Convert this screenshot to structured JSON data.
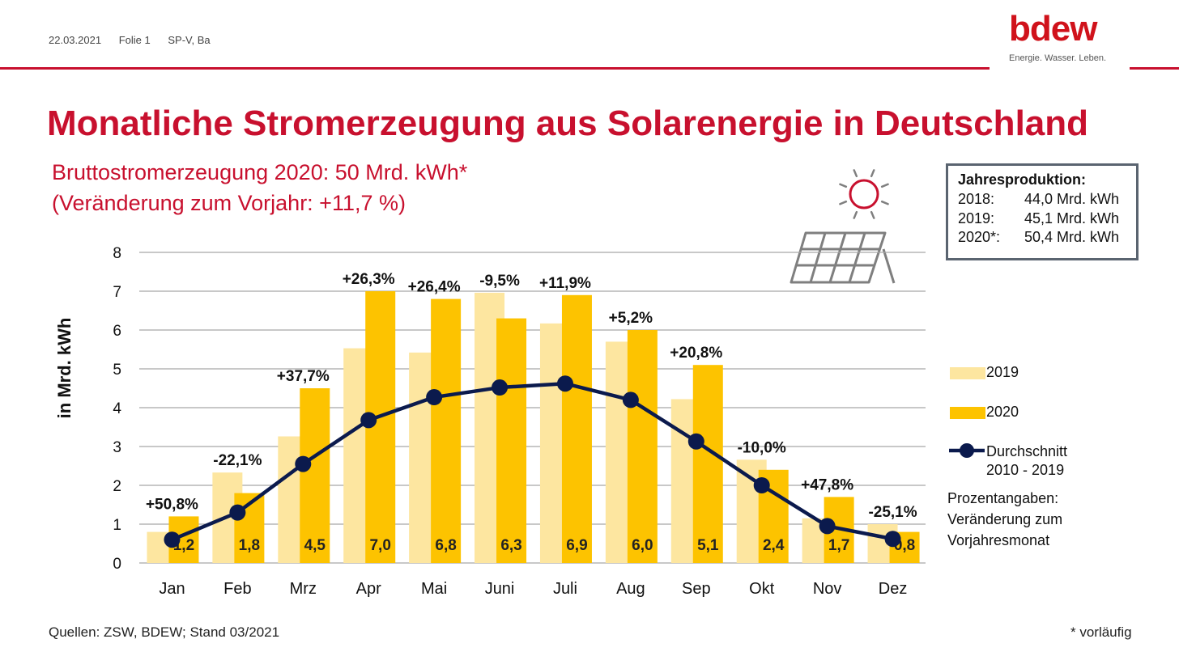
{
  "meta": {
    "date": "22.03.2021",
    "slide": "Folie 1",
    "author": "SP-V, Ba"
  },
  "logo": {
    "word": "bdew",
    "tagline": "Energie. Wasser. Leben."
  },
  "header": {
    "title": "Monatliche Stromerzeugung aus Solarenergie in Deutschland",
    "subtitle_line1": "Bruttostromerzeugung 2020: 50 Mrd. kWh*",
    "subtitle_line2": "(Veränderung zum Vorjahr: +11,7 %)"
  },
  "infobox": {
    "title": "Jahresproduktion:",
    "rows": [
      {
        "year": "2018:",
        "value": "44,0 Mrd. kWh"
      },
      {
        "year": "2019:",
        "value": "45,1 Mrd. kWh"
      },
      {
        "year": "2020*:",
        "value": "50,4 Mrd. kWh"
      }
    ]
  },
  "legend": {
    "s2019": "2019",
    "s2020": "2020",
    "avg_line1": "Durchschnitt",
    "avg_line2": "2010 - 2019",
    "note_line1": "Prozentangaben:",
    "note_line2": "Veränderung zum",
    "note_line3": "Vorjahresmonat"
  },
  "footer": {
    "sources": "Quellen: ZSW, BDEW; Stand 03/2021",
    "note": "* vorläufig"
  },
  "colors": {
    "brand": "#c8102e",
    "bar2019": "#fde6a0",
    "bar2020": "#fdc300",
    "avg": "#0b1a4d",
    "grid": "#a6a6a6"
  },
  "icons": [
    "sun-icon",
    "solar-panel-icon"
  ],
  "chart_data": {
    "type": "bar",
    "ylabel": "in Mrd. kWh",
    "ylim": [
      0,
      8
    ],
    "yticks": [
      "0",
      "1",
      "2",
      "3",
      "4",
      "5",
      "6",
      "7",
      "8"
    ],
    "categories": [
      "Jan",
      "Feb",
      "Mrz",
      "Apr",
      "Mai",
      "Juni",
      "Juli",
      "Aug",
      "Sep",
      "Okt",
      "Nov",
      "Dez"
    ],
    "series": [
      {
        "name": "2019",
        "type": "bar",
        "values": [
          0.8,
          2.33,
          3.26,
          5.53,
          5.42,
          6.96,
          6.17,
          5.7,
          4.22,
          2.66,
          1.15,
          1.0
        ]
      },
      {
        "name": "2020",
        "type": "bar",
        "values": [
          1.2,
          1.8,
          4.5,
          7.0,
          6.8,
          6.3,
          6.9,
          6.0,
          5.1,
          2.4,
          1.7,
          0.8
        ]
      },
      {
        "name": "Durchschnitt 2010 - 2019",
        "type": "line",
        "values": [
          0.6,
          1.3,
          2.55,
          3.68,
          4.27,
          4.52,
          4.62,
          4.2,
          3.13,
          2.0,
          0.95,
          0.62
        ]
      }
    ],
    "value_labels_2020": [
      "1,2",
      "1,8",
      "4,5",
      "7,0",
      "6,8",
      "6,3",
      "6,9",
      "6,0",
      "5,1",
      "2,4",
      "1,7",
      "0,8"
    ],
    "change_labels": [
      "+50,8%",
      "-22,1%",
      "+37,7%",
      "+26,3%",
      "+26,4%",
      "-9,5%",
      "+11,9%",
      "+5,2%",
      "+20,8%",
      "-10,0%",
      "+47,8%",
      "-25,1%"
    ],
    "grid": true,
    "legend_position": "right"
  }
}
